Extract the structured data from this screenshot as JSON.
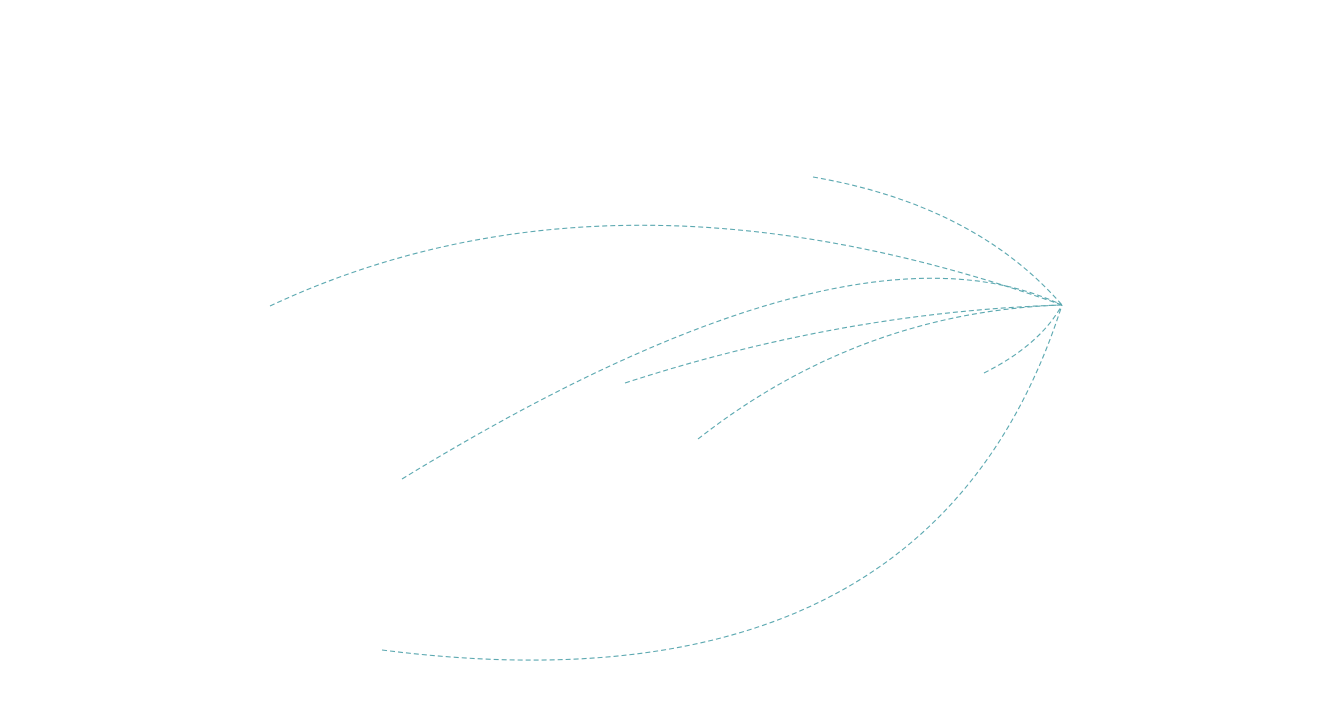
{
  "map": {
    "flow_color": "#5ba8b0",
    "line_style": "dashed",
    "flow_count": 7
  }
}
